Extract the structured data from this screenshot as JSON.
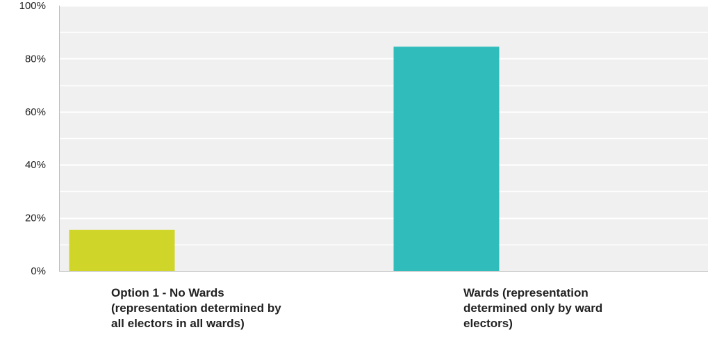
{
  "chart_data": {
    "type": "bar",
    "categories": [
      "Option 1 - No Wards\n(representation determined by\nall electors in all wards)",
      "Wards (representation\ndetermined only by ward\nelectors)"
    ],
    "values": [
      15.5,
      84.5
    ],
    "colors": [
      "#d0d52a",
      "#31bcbc"
    ],
    "ylim": [
      0,
      100
    ],
    "y_ticks": [
      0,
      20,
      40,
      60,
      80,
      100
    ],
    "y_tick_labels": [
      "0%",
      "20%",
      "40%",
      "60%",
      "80%",
      "100%"
    ],
    "minor_gridlines": true,
    "grid": true,
    "title": "",
    "xlabel": "",
    "ylabel": ""
  }
}
